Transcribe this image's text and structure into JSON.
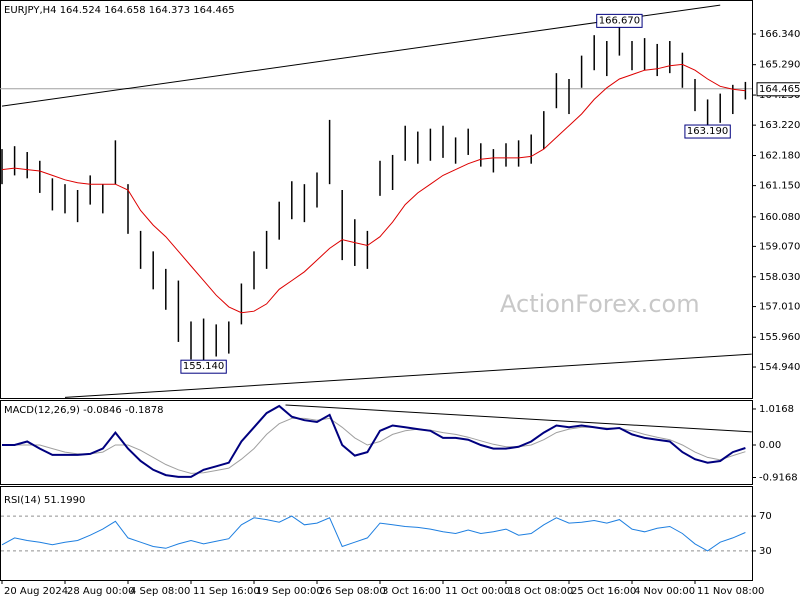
{
  "chart_data": [
    {
      "type": "ohlc",
      "title": "EURJPY,H4  164.524 164.658 164.373 164.465",
      "categories": [
        "20 Aug 2024",
        null,
        null,
        null,
        null,
        "28 Aug 00:00",
        null,
        null,
        null,
        null,
        "4 Sep 08:00",
        null,
        null,
        null,
        null,
        "11 Sep 16:00",
        null,
        null,
        null,
        null,
        "19 Sep 00:00",
        null,
        null,
        null,
        null,
        "26 Sep 08:00",
        null,
        null,
        null,
        null,
        "3 Oct 16:00",
        null,
        null,
        null,
        null,
        "11 Oct 00:00",
        null,
        null,
        null,
        null,
        "18 Oct 08:00",
        null,
        null,
        null,
        null,
        "25 Oct 16:00",
        null,
        null,
        null,
        null,
        "4 Nov 00:00",
        null,
        null,
        null,
        null,
        "11 Nov 08:00",
        null,
        null,
        null,
        null
      ],
      "high": [
        162.4,
        162.5,
        162.3,
        162.0,
        161.4,
        161.2,
        161.0,
        161.5,
        161.2,
        162.7,
        161.2,
        159.6,
        158.9,
        158.3,
        157.9,
        156.5,
        156.6,
        156.4,
        156.5,
        157.8,
        158.9,
        159.6,
        160.6,
        161.3,
        161.2,
        161.6,
        163.4,
        161.0,
        160.0,
        159.6,
        162.0,
        162.2,
        163.2,
        163.0,
        163.1,
        163.2,
        162.8,
        163.1,
        162.6,
        162.4,
        162.6,
        162.7,
        162.9,
        163.7,
        165.0,
        164.8,
        165.6,
        166.3,
        166.1,
        166.67,
        166.1,
        166.2,
        166.0,
        166.1,
        165.7,
        164.8,
        164.1,
        164.3,
        164.6,
        164.7
      ],
      "low": [
        161.2,
        161.5,
        161.4,
        160.9,
        160.3,
        160.2,
        159.9,
        160.5,
        160.2,
        161.2,
        159.5,
        158.3,
        157.6,
        156.9,
        155.8,
        155.2,
        155.14,
        155.3,
        155.4,
        156.4,
        157.6,
        158.3,
        159.3,
        160.0,
        159.9,
        160.4,
        161.2,
        158.6,
        158.4,
        158.3,
        160.8,
        161.0,
        162.0,
        161.9,
        162.0,
        162.1,
        161.9,
        162.2,
        161.8,
        161.6,
        161.8,
        161.8,
        161.9,
        162.4,
        163.8,
        163.6,
        164.5,
        165.1,
        164.9,
        165.6,
        165.1,
        165.1,
        164.9,
        165.0,
        164.5,
        163.7,
        163.19,
        163.3,
        163.6,
        164.1
      ],
      "color": "#000000",
      "ma_values": [
        161.7,
        161.75,
        161.7,
        161.65,
        161.5,
        161.35,
        161.25,
        161.2,
        161.2,
        161.2,
        161.0,
        160.3,
        159.8,
        159.4,
        158.9,
        158.4,
        157.9,
        157.4,
        157.0,
        156.8,
        156.85,
        157.1,
        157.6,
        157.9,
        158.2,
        158.6,
        159.0,
        159.3,
        159.2,
        159.1,
        159.4,
        159.9,
        160.5,
        160.9,
        161.2,
        161.5,
        161.7,
        161.9,
        162.05,
        162.1,
        162.1,
        162.1,
        162.15,
        162.4,
        162.8,
        163.2,
        163.6,
        164.1,
        164.5,
        164.8,
        164.95,
        165.1,
        165.15,
        165.25,
        165.3,
        165.1,
        164.8,
        164.55,
        164.45,
        164.4
      ],
      "ma_color": "#dd0000",
      "last": 164.465,
      "annotations": [
        {
          "at": 49,
          "value": 166.67,
          "label": "166.670"
        },
        {
          "at": 56,
          "value": 163.19,
          "label": "163.190"
        },
        {
          "at": 16,
          "value": 155.14,
          "label": "155.140"
        }
      ],
      "trendlines": [
        {
          "x": [
            0,
            57
          ],
          "y": [
            163.87,
            167.33
          ]
        },
        {
          "x": [
            5,
            59.5
          ],
          "y": [
            153.9,
            155.38
          ]
        }
      ],
      "watermark": "ActionForex.com",
      "ylim": [
        153.88,
        167.504
      ],
      "yticks": [
        {
          "value": 166.34,
          "label": "166.340"
        },
        {
          "value": 165.29,
          "label": "165.290"
        },
        {
          "value": 164.25,
          "label": "164.250"
        },
        {
          "value": 163.22,
          "label": "163.220"
        },
        {
          "value": 162.18,
          "label": "162.180"
        },
        {
          "value": 161.15,
          "label": "161.150"
        },
        {
          "value": 160.08,
          "label": "160.080"
        },
        {
          "value": 159.07,
          "label": "159.070"
        },
        {
          "value": 158.03,
          "label": "158.030"
        },
        {
          "value": 157.01,
          "label": "157.010"
        },
        {
          "value": 155.96,
          "label": "155.960"
        },
        {
          "value": 154.94,
          "label": "154.940"
        }
      ],
      "grid": false
    },
    {
      "type": "macd",
      "title": "MACD(12,26,9) -0.0846 -0.1878",
      "series": [
        {
          "color": "#00007f",
          "values": [
            0.0,
            0.0,
            0.1,
            -0.1,
            -0.28,
            -0.28,
            -0.28,
            -0.25,
            -0.1,
            0.35,
            -0.1,
            -0.45,
            -0.7,
            -0.85,
            -0.9,
            -0.9,
            -0.7,
            -0.6,
            -0.5,
            0.1,
            0.5,
            0.9,
            1.1,
            0.8,
            0.7,
            0.65,
            0.85,
            0.0,
            -0.3,
            -0.2,
            0.4,
            0.55,
            0.5,
            0.45,
            0.4,
            0.2,
            0.2,
            0.15,
            0.0,
            -0.1,
            -0.1,
            -0.05,
            0.1,
            0.35,
            0.55,
            0.5,
            0.55,
            0.5,
            0.45,
            0.48,
            0.3,
            0.2,
            0.15,
            0.1,
            -0.2,
            -0.4,
            -0.5,
            -0.45,
            -0.2,
            -0.0846
          ]
        },
        {
          "color": "#a0a0a0",
          "values": [
            0.0,
            0.0,
            0.0,
            0.0,
            -0.1,
            -0.2,
            -0.25,
            -0.25,
            -0.2,
            0.0,
            0.0,
            -0.15,
            -0.35,
            -0.55,
            -0.7,
            -0.8,
            -0.78,
            -0.72,
            -0.65,
            -0.4,
            -0.1,
            0.3,
            0.6,
            0.75,
            0.75,
            0.7,
            0.75,
            0.5,
            0.2,
            0.0,
            0.1,
            0.3,
            0.4,
            0.45,
            0.42,
            0.35,
            0.3,
            0.22,
            0.12,
            0.02,
            -0.05,
            -0.05,
            0.0,
            0.15,
            0.35,
            0.45,
            0.5,
            0.5,
            0.48,
            0.47,
            0.4,
            0.3,
            0.22,
            0.15,
            0.0,
            -0.2,
            -0.35,
            -0.42,
            -0.3,
            -0.1878
          ]
        }
      ],
      "trendlines": [
        {
          "x": [
            22.5,
            59.5
          ],
          "y": [
            1.13,
            0.37
          ]
        }
      ],
      "ylim": [
        -1.1,
        1.27
      ],
      "yticks": [
        1.0168,
        {
          "value": 0,
          "label": "0.00"
        },
        -0.9168
      ],
      "grid": false
    },
    {
      "type": "line",
      "title": "RSI(14) 51.1990",
      "series": [
        {
          "color": "#1e7fe0",
          "values": [
            37,
            45,
            42,
            40,
            37,
            40,
            42,
            48,
            55,
            64,
            45,
            40,
            35,
            33,
            38,
            42,
            38,
            41,
            44,
            60,
            68,
            66,
            63,
            70,
            60,
            62,
            68,
            35,
            40,
            45,
            62,
            60,
            58,
            57,
            55,
            52,
            50,
            54,
            50,
            52,
            55,
            48,
            50,
            60,
            68,
            62,
            63,
            65,
            62,
            66,
            55,
            52,
            56,
            58,
            50,
            38,
            30,
            40,
            45,
            51.199
          ]
        }
      ],
      "ylim": [
        0,
        100
      ],
      "yticks": [
        70,
        30
      ],
      "grid": true
    }
  ]
}
